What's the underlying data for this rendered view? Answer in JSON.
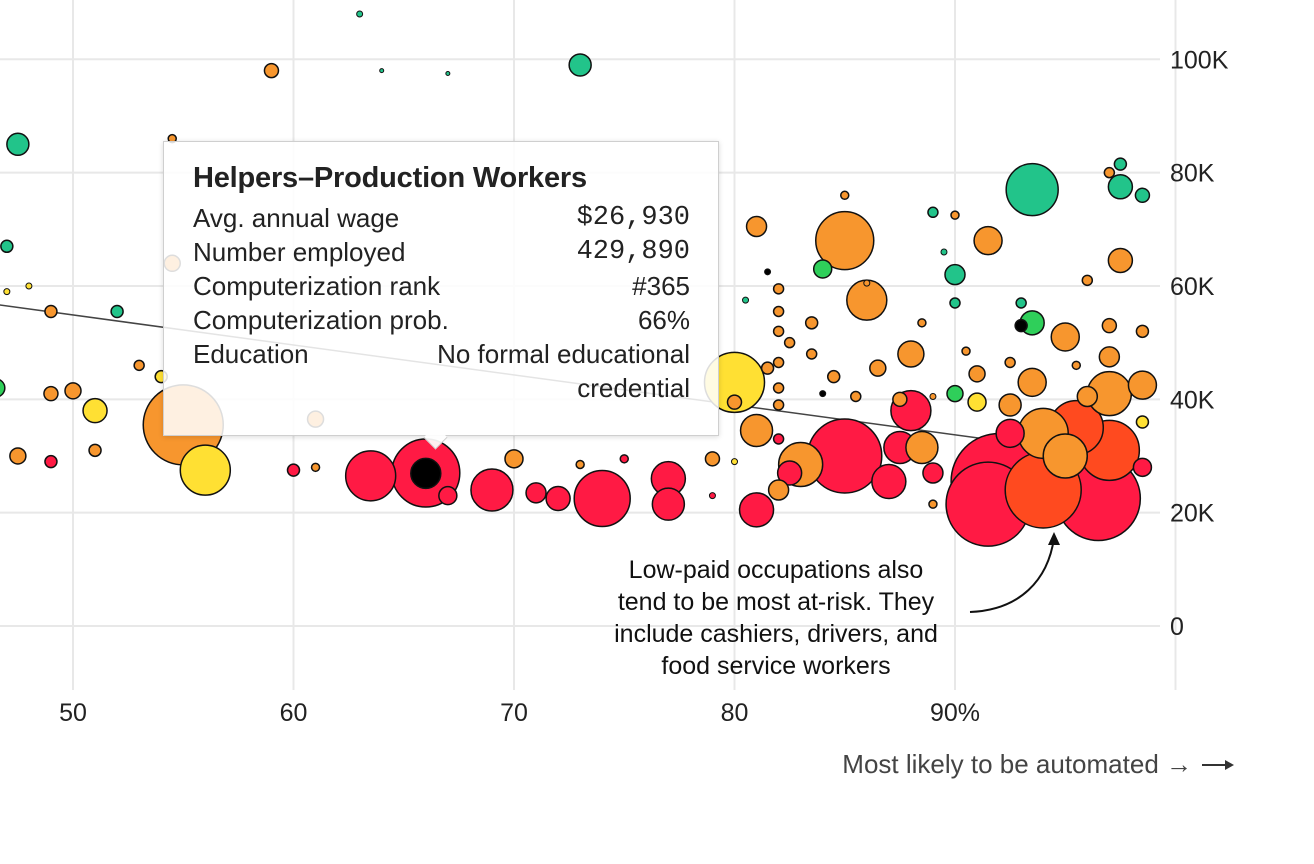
{
  "chart_data": {
    "type": "scatter",
    "title": "",
    "xlabel": "Most likely to be automated →",
    "ylabel": "",
    "xlim": [
      46,
      100
    ],
    "ylim": [
      -10000,
      110000
    ],
    "x_ticks": [
      {
        "value": 50,
        "label": "50"
      },
      {
        "value": 60,
        "label": "60"
      },
      {
        "value": 70,
        "label": "70"
      },
      {
        "value": 80,
        "label": "80"
      },
      {
        "value": 90,
        "label": "90%"
      }
    ],
    "y_ticks": [
      {
        "value": 0,
        "label": "0"
      },
      {
        "value": 20000,
        "label": "20K"
      },
      {
        "value": 40000,
        "label": "40K"
      },
      {
        "value": 60000,
        "label": "60K"
      },
      {
        "value": 80000,
        "label": "80K"
      },
      {
        "value": 100000,
        "label": "100K"
      }
    ],
    "grid": true,
    "trend_line": {
      "x": [
        46,
        98
      ],
      "y": [
        57000,
        29500
      ]
    },
    "point_note": "x = computerization probability (%), y = average annual wage (USD), r = relative number employed",
    "colors": {
      "green": "#22c48a",
      "lightgreen": "#2fcf5a",
      "yellow": "#ffe033",
      "orange": "#f7962e",
      "redorange": "#ff4a1f",
      "red": "#ff1a44",
      "black": "#000000",
      "grid": "#e8e8e8"
    },
    "points": [
      {
        "x": 63,
        "y": 108000,
        "r": 3,
        "c": "green"
      },
      {
        "x": 64,
        "y": 98000,
        "r": 2,
        "c": "green"
      },
      {
        "x": 67,
        "y": 97500,
        "r": 2,
        "c": "green"
      },
      {
        "x": 73,
        "y": 99000,
        "r": 11,
        "c": "green"
      },
      {
        "x": 59,
        "y": 98000,
        "r": 7,
        "c": "orange"
      },
      {
        "x": 47.5,
        "y": 85000,
        "r": 11,
        "c": "green"
      },
      {
        "x": 54.5,
        "y": 86000,
        "r": 4,
        "c": "orange"
      },
      {
        "x": 47,
        "y": 67000,
        "r": 6,
        "c": "green"
      },
      {
        "x": 52,
        "y": 55500,
        "r": 6,
        "c": "green"
      },
      {
        "x": 49,
        "y": 55500,
        "r": 6,
        "c": "orange"
      },
      {
        "x": 46.5,
        "y": 42000,
        "r": 9,
        "c": "lightgreen"
      },
      {
        "x": 49,
        "y": 41000,
        "r": 7,
        "c": "orange"
      },
      {
        "x": 50,
        "y": 41500,
        "r": 8,
        "c": "orange"
      },
      {
        "x": 51,
        "y": 38000,
        "r": 12,
        "c": "yellow"
      },
      {
        "x": 47.5,
        "y": 30000,
        "r": 8,
        "c": "orange"
      },
      {
        "x": 49,
        "y": 29000,
        "r": 6,
        "c": "red"
      },
      {
        "x": 51,
        "y": 31000,
        "r": 6,
        "c": "orange"
      },
      {
        "x": 54.5,
        "y": 64000,
        "r": 8,
        "c": "orange"
      },
      {
        "x": 55,
        "y": 35500,
        "r": 40,
        "c": "orange"
      },
      {
        "x": 56,
        "y": 27500,
        "r": 25,
        "c": "yellow"
      },
      {
        "x": 60,
        "y": 27500,
        "r": 6,
        "c": "red"
      },
      {
        "x": 61,
        "y": 28000,
        "r": 4,
        "c": "orange"
      },
      {
        "x": 63.5,
        "y": 26500,
        "r": 25,
        "c": "red"
      },
      {
        "x": 66,
        "y": 27000,
        "r": 34,
        "c": "red"
      },
      {
        "x": 67,
        "y": 23000,
        "r": 9,
        "c": "red"
      },
      {
        "x": 69,
        "y": 24000,
        "r": 21,
        "c": "red"
      },
      {
        "x": 70,
        "y": 29500,
        "r": 9,
        "c": "orange"
      },
      {
        "x": 71,
        "y": 23500,
        "r": 10,
        "c": "red"
      },
      {
        "x": 72,
        "y": 22500,
        "r": 12,
        "c": "red"
      },
      {
        "x": 74,
        "y": 22500,
        "r": 28,
        "c": "red"
      },
      {
        "x": 77,
        "y": 26000,
        "r": 17,
        "c": "red"
      },
      {
        "x": 77,
        "y": 21500,
        "r": 16,
        "c": "red"
      },
      {
        "x": 73,
        "y": 28500,
        "r": 4,
        "c": "orange"
      },
      {
        "x": 75,
        "y": 29500,
        "r": 4,
        "c": "red"
      },
      {
        "x": 79,
        "y": 29500,
        "r": 7,
        "c": "orange"
      },
      {
        "x": 79,
        "y": 23000,
        "r": 3,
        "c": "red"
      },
      {
        "x": 80,
        "y": 39500,
        "r": 7,
        "c": "orange"
      },
      {
        "x": 80,
        "y": 43000,
        "r": 30,
        "c": "yellow"
      },
      {
        "x": 81,
        "y": 20500,
        "r": 17,
        "c": "red"
      },
      {
        "x": 81,
        "y": 70500,
        "r": 10,
        "c": "orange"
      },
      {
        "x": 81,
        "y": 34500,
        "r": 16,
        "c": "orange"
      },
      {
        "x": 82,
        "y": 24000,
        "r": 10,
        "c": "orange"
      },
      {
        "x": 82.5,
        "y": 27000,
        "r": 12,
        "c": "red"
      },
      {
        "x": 83,
        "y": 28500,
        "r": 22,
        "c": "orange"
      },
      {
        "x": 84,
        "y": 63000,
        "r": 9,
        "c": "lightgreen"
      },
      {
        "x": 84,
        "y": 41000,
        "r": 3,
        "c": "black"
      },
      {
        "x": 85,
        "y": 68000,
        "r": 29,
        "c": "orange"
      },
      {
        "x": 85,
        "y": 30000,
        "r": 37,
        "c": "red"
      },
      {
        "x": 86,
        "y": 57500,
        "r": 20,
        "c": "orange"
      },
      {
        "x": 86.5,
        "y": 45500,
        "r": 8,
        "c": "orange"
      },
      {
        "x": 87,
        "y": 25500,
        "r": 17,
        "c": "red"
      },
      {
        "x": 87.5,
        "y": 31500,
        "r": 16,
        "c": "red"
      },
      {
        "x": 88,
        "y": 48000,
        "r": 13,
        "c": "orange"
      },
      {
        "x": 88,
        "y": 38000,
        "r": 20,
        "c": "red"
      },
      {
        "x": 88.5,
        "y": 31500,
        "r": 16,
        "c": "orange"
      },
      {
        "x": 89,
        "y": 27000,
        "r": 10,
        "c": "red"
      },
      {
        "x": 89,
        "y": 21500,
        "r": 4,
        "c": "orange"
      },
      {
        "x": 89,
        "y": 40500,
        "r": 3,
        "c": "orange"
      },
      {
        "x": 90,
        "y": 62000,
        "r": 10,
        "c": "green"
      },
      {
        "x": 90,
        "y": 57000,
        "r": 5,
        "c": "green"
      },
      {
        "x": 89,
        "y": 73000,
        "r": 5,
        "c": "green"
      },
      {
        "x": 90,
        "y": 72500,
        "r": 4,
        "c": "orange"
      },
      {
        "x": 91,
        "y": 39500,
        "r": 9,
        "c": "yellow"
      },
      {
        "x": 91,
        "y": 44500,
        "r": 8,
        "c": "orange"
      },
      {
        "x": 91.5,
        "y": 68000,
        "r": 14,
        "c": "orange"
      },
      {
        "x": 92,
        "y": 25500,
        "r": 48,
        "c": "red"
      },
      {
        "x": 91.5,
        "y": 21500,
        "r": 42,
        "c": "red"
      },
      {
        "x": 92.5,
        "y": 39000,
        "r": 11,
        "c": "orange"
      },
      {
        "x": 93,
        "y": 57000,
        "r": 5,
        "c": "green"
      },
      {
        "x": 93,
        "y": 53000,
        "r": 6,
        "c": "black"
      },
      {
        "x": 93.5,
        "y": 77000,
        "r": 26,
        "c": "green"
      },
      {
        "x": 93.5,
        "y": 53500,
        "r": 12,
        "c": "lightgreen"
      },
      {
        "x": 93.5,
        "y": 43000,
        "r": 14,
        "c": "orange"
      },
      {
        "x": 94,
        "y": 24000,
        "r": 38,
        "c": "redorange"
      },
      {
        "x": 94,
        "y": 34000,
        "r": 25,
        "c": "orange"
      },
      {
        "x": 95,
        "y": 51000,
        "r": 14,
        "c": "orange"
      },
      {
        "x": 95,
        "y": 30000,
        "r": 22,
        "c": "orange"
      },
      {
        "x": 95.5,
        "y": 35000,
        "r": 27,
        "c": "redorange"
      },
      {
        "x": 96,
        "y": 40500,
        "r": 10,
        "c": "orange"
      },
      {
        "x": 96,
        "y": 61000,
        "r": 5,
        "c": "orange"
      },
      {
        "x": 96.5,
        "y": 22500,
        "r": 42,
        "c": "red"
      },
      {
        "x": 97,
        "y": 31000,
        "r": 30,
        "c": "redorange"
      },
      {
        "x": 97,
        "y": 41000,
        "r": 22,
        "c": "orange"
      },
      {
        "x": 97,
        "y": 47500,
        "r": 10,
        "c": "orange"
      },
      {
        "x": 97,
        "y": 53000,
        "r": 7,
        "c": "orange"
      },
      {
        "x": 97.5,
        "y": 64500,
        "r": 12,
        "c": "orange"
      },
      {
        "x": 97.5,
        "y": 77500,
        "r": 12,
        "c": "green"
      },
      {
        "x": 97.5,
        "y": 81500,
        "r": 6,
        "c": "green"
      },
      {
        "x": 97,
        "y": 80000,
        "r": 5,
        "c": "orange"
      },
      {
        "x": 98.5,
        "y": 76000,
        "r": 7,
        "c": "green"
      },
      {
        "x": 98.5,
        "y": 52000,
        "r": 6,
        "c": "orange"
      },
      {
        "x": 98.5,
        "y": 36000,
        "r": 6,
        "c": "yellow"
      },
      {
        "x": 98.5,
        "y": 28000,
        "r": 9,
        "c": "red"
      },
      {
        "x": 98.5,
        "y": 42500,
        "r": 14,
        "c": "orange"
      },
      {
        "x": 85,
        "y": 76000,
        "r": 4,
        "c": "orange"
      },
      {
        "x": 86,
        "y": 60500,
        "r": 3,
        "c": "orange"
      },
      {
        "x": 88.5,
        "y": 53500,
        "r": 4,
        "c": "orange"
      },
      {
        "x": 89.5,
        "y": 66000,
        "r": 3,
        "c": "green"
      },
      {
        "x": 82,
        "y": 59500,
        "r": 5,
        "c": "orange"
      },
      {
        "x": 82,
        "y": 55500,
        "r": 5,
        "c": "orange"
      },
      {
        "x": 82,
        "y": 52000,
        "r": 5,
        "c": "orange"
      },
      {
        "x": 82.5,
        "y": 50000,
        "r": 5,
        "c": "orange"
      },
      {
        "x": 83.5,
        "y": 53500,
        "r": 6,
        "c": "orange"
      },
      {
        "x": 83.5,
        "y": 48000,
        "r": 5,
        "c": "orange"
      },
      {
        "x": 81.5,
        "y": 62500,
        "r": 3,
        "c": "black"
      },
      {
        "x": 80.5,
        "y": 57500,
        "r": 3,
        "c": "green"
      },
      {
        "x": 82,
        "y": 46500,
        "r": 5,
        "c": "orange"
      },
      {
        "x": 82,
        "y": 42000,
        "r": 5,
        "c": "orange"
      },
      {
        "x": 82,
        "y": 39000,
        "r": 5,
        "c": "orange"
      },
      {
        "x": 81.5,
        "y": 45500,
        "r": 6,
        "c": "orange"
      },
      {
        "x": 84.5,
        "y": 44000,
        "r": 6,
        "c": "orange"
      },
      {
        "x": 85.5,
        "y": 40500,
        "r": 5,
        "c": "orange"
      },
      {
        "x": 87.5,
        "y": 40000,
        "r": 7,
        "c": "orange"
      },
      {
        "x": 90,
        "y": 41000,
        "r": 8,
        "c": "lightgreen"
      },
      {
        "x": 90.5,
        "y": 48500,
        "r": 4,
        "c": "orange"
      },
      {
        "x": 92.5,
        "y": 46500,
        "r": 5,
        "c": "orange"
      },
      {
        "x": 92.5,
        "y": 34000,
        "r": 14,
        "c": "red"
      },
      {
        "x": 95.5,
        "y": 46000,
        "r": 4,
        "c": "orange"
      },
      {
        "x": 80,
        "y": 29000,
        "r": 3,
        "c": "yellow"
      },
      {
        "x": 82,
        "y": 33000,
        "r": 5,
        "c": "red"
      },
      {
        "x": 61,
        "y": 36500,
        "r": 8,
        "c": "orange"
      },
      {
        "x": 54,
        "y": 44000,
        "r": 6,
        "c": "yellow"
      },
      {
        "x": 53,
        "y": 46000,
        "r": 5,
        "c": "orange"
      },
      {
        "x": 48,
        "y": 60000,
        "r": 3,
        "c": "yellow"
      },
      {
        "x": 47,
        "y": 59000,
        "r": 3,
        "c": "yellow"
      }
    ],
    "highlight": {
      "x": 66,
      "y": 26930,
      "r": 15,
      "c": "black"
    },
    "annotation": {
      "lines": [
        "Low-paid occupations also",
        "tend to be most at-risk. They",
        "include cashiers, drivers, and",
        "food service workers"
      ]
    },
    "tooltip": {
      "title": "Helpers–Production Workers",
      "rows": [
        {
          "label": "Avg. annual wage",
          "value": "$26,930"
        },
        {
          "label": "Number employed",
          "value": "429,890"
        },
        {
          "label": "Computerization rank",
          "value": "#365"
        },
        {
          "label": "Computerization prob.",
          "value": "66%"
        }
      ],
      "education_label": "Education",
      "education_value": "No formal educational credential"
    }
  }
}
